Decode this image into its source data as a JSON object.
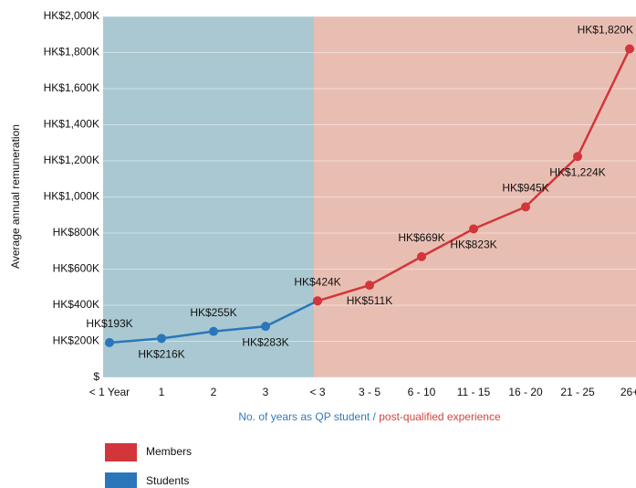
{
  "chart_data": {
    "type": "line",
    "ylabel": "Average annual remuneration",
    "xlabel_parts": [
      {
        "text": "No. of years as QP student /",
        "color": "#2f7bbf"
      },
      {
        "text": "post-qualified experience",
        "color": "#d2453f"
      }
    ],
    "categories": [
      "< 1 Year",
      "1",
      "2",
      "3",
      "< 3",
      "3 - 5",
      "6 - 10",
      "11 - 15",
      "16 - 20",
      "21 - 25",
      "26+"
    ],
    "series": [
      {
        "name": "Members",
        "color": "#d2363a",
        "values": [
          null,
          null,
          null,
          null,
          424,
          511,
          669,
          823,
          945,
          1224,
          1820
        ],
        "value_labels": [
          null,
          null,
          null,
          null,
          "HK$424K",
          "HK$511K",
          "HK$669K",
          "HK$823K",
          "HK$945K",
          "HK$1,224K",
          "HK$1,820K"
        ]
      },
      {
        "name": "Students",
        "color": "#2b76ba",
        "values": [
          193,
          216,
          255,
          283,
          424,
          null,
          null,
          null,
          null,
          null,
          null
        ],
        "value_labels": [
          "HK$193K",
          "HK$216K",
          "HK$255K",
          "HK$283K",
          null,
          null,
          null,
          null,
          null,
          null,
          null
        ]
      }
    ],
    "ylim": [
      0,
      2000
    ],
    "yticks": [
      {
        "value": 0,
        "label": "$"
      },
      {
        "value": 200,
        "label": "HK$200K"
      },
      {
        "value": 400,
        "label": "HK$400K"
      },
      {
        "value": 600,
        "label": "HK$600K"
      },
      {
        "value": 800,
        "label": "HK$800K"
      },
      {
        "value": 1000,
        "label": "HK$1,000K"
      },
      {
        "value": 1200,
        "label": "HK$1,200K"
      },
      {
        "value": 1400,
        "label": "HK$1,400K"
      },
      {
        "value": 1600,
        "label": "HK$1,600K"
      },
      {
        "value": 1800,
        "label": "HK$1,800K"
      },
      {
        "value": 2000,
        "label": "HK$2,000K"
      }
    ],
    "grid": true,
    "legend": "bottom-left"
  }
}
